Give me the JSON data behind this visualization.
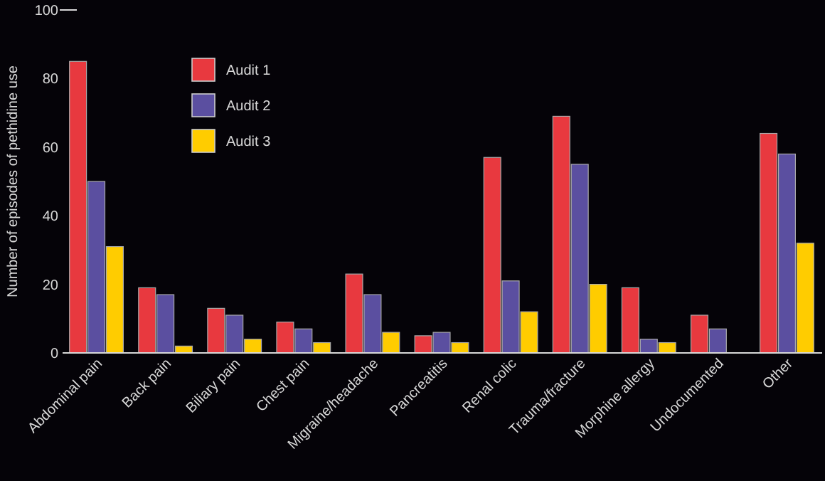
{
  "chart_data": {
    "type": "bar",
    "ylabel": "Number of episodes of pethidine use",
    "categories": [
      "Abdominal pain",
      "Back pain",
      "Biliary pain",
      "Chest pain",
      "Migraine/headache",
      "Pancreatitis",
      "Renal colic",
      "Trauma/fracture",
      "Morphine allergy",
      "Undocumented",
      "Other"
    ],
    "series": [
      {
        "name": "Audit 1",
        "color": "#e8393f",
        "values": [
          85,
          19,
          13,
          9,
          23,
          5,
          57,
          69,
          19,
          11,
          64
        ]
      },
      {
        "name": "Audit 2",
        "color": "#5b4fa0",
        "values": [
          50,
          17,
          11,
          7,
          17,
          6,
          21,
          55,
          4,
          7,
          58
        ]
      },
      {
        "name": "Audit 3",
        "color": "#ffcc00",
        "values": [
          31,
          2,
          4,
          3,
          6,
          3,
          12,
          20,
          3,
          0,
          32
        ]
      }
    ],
    "ylim": [
      0,
      100
    ],
    "yticks": [
      0,
      20,
      40,
      60,
      80,
      100
    ],
    "legend": "top left",
    "grid": false
  }
}
